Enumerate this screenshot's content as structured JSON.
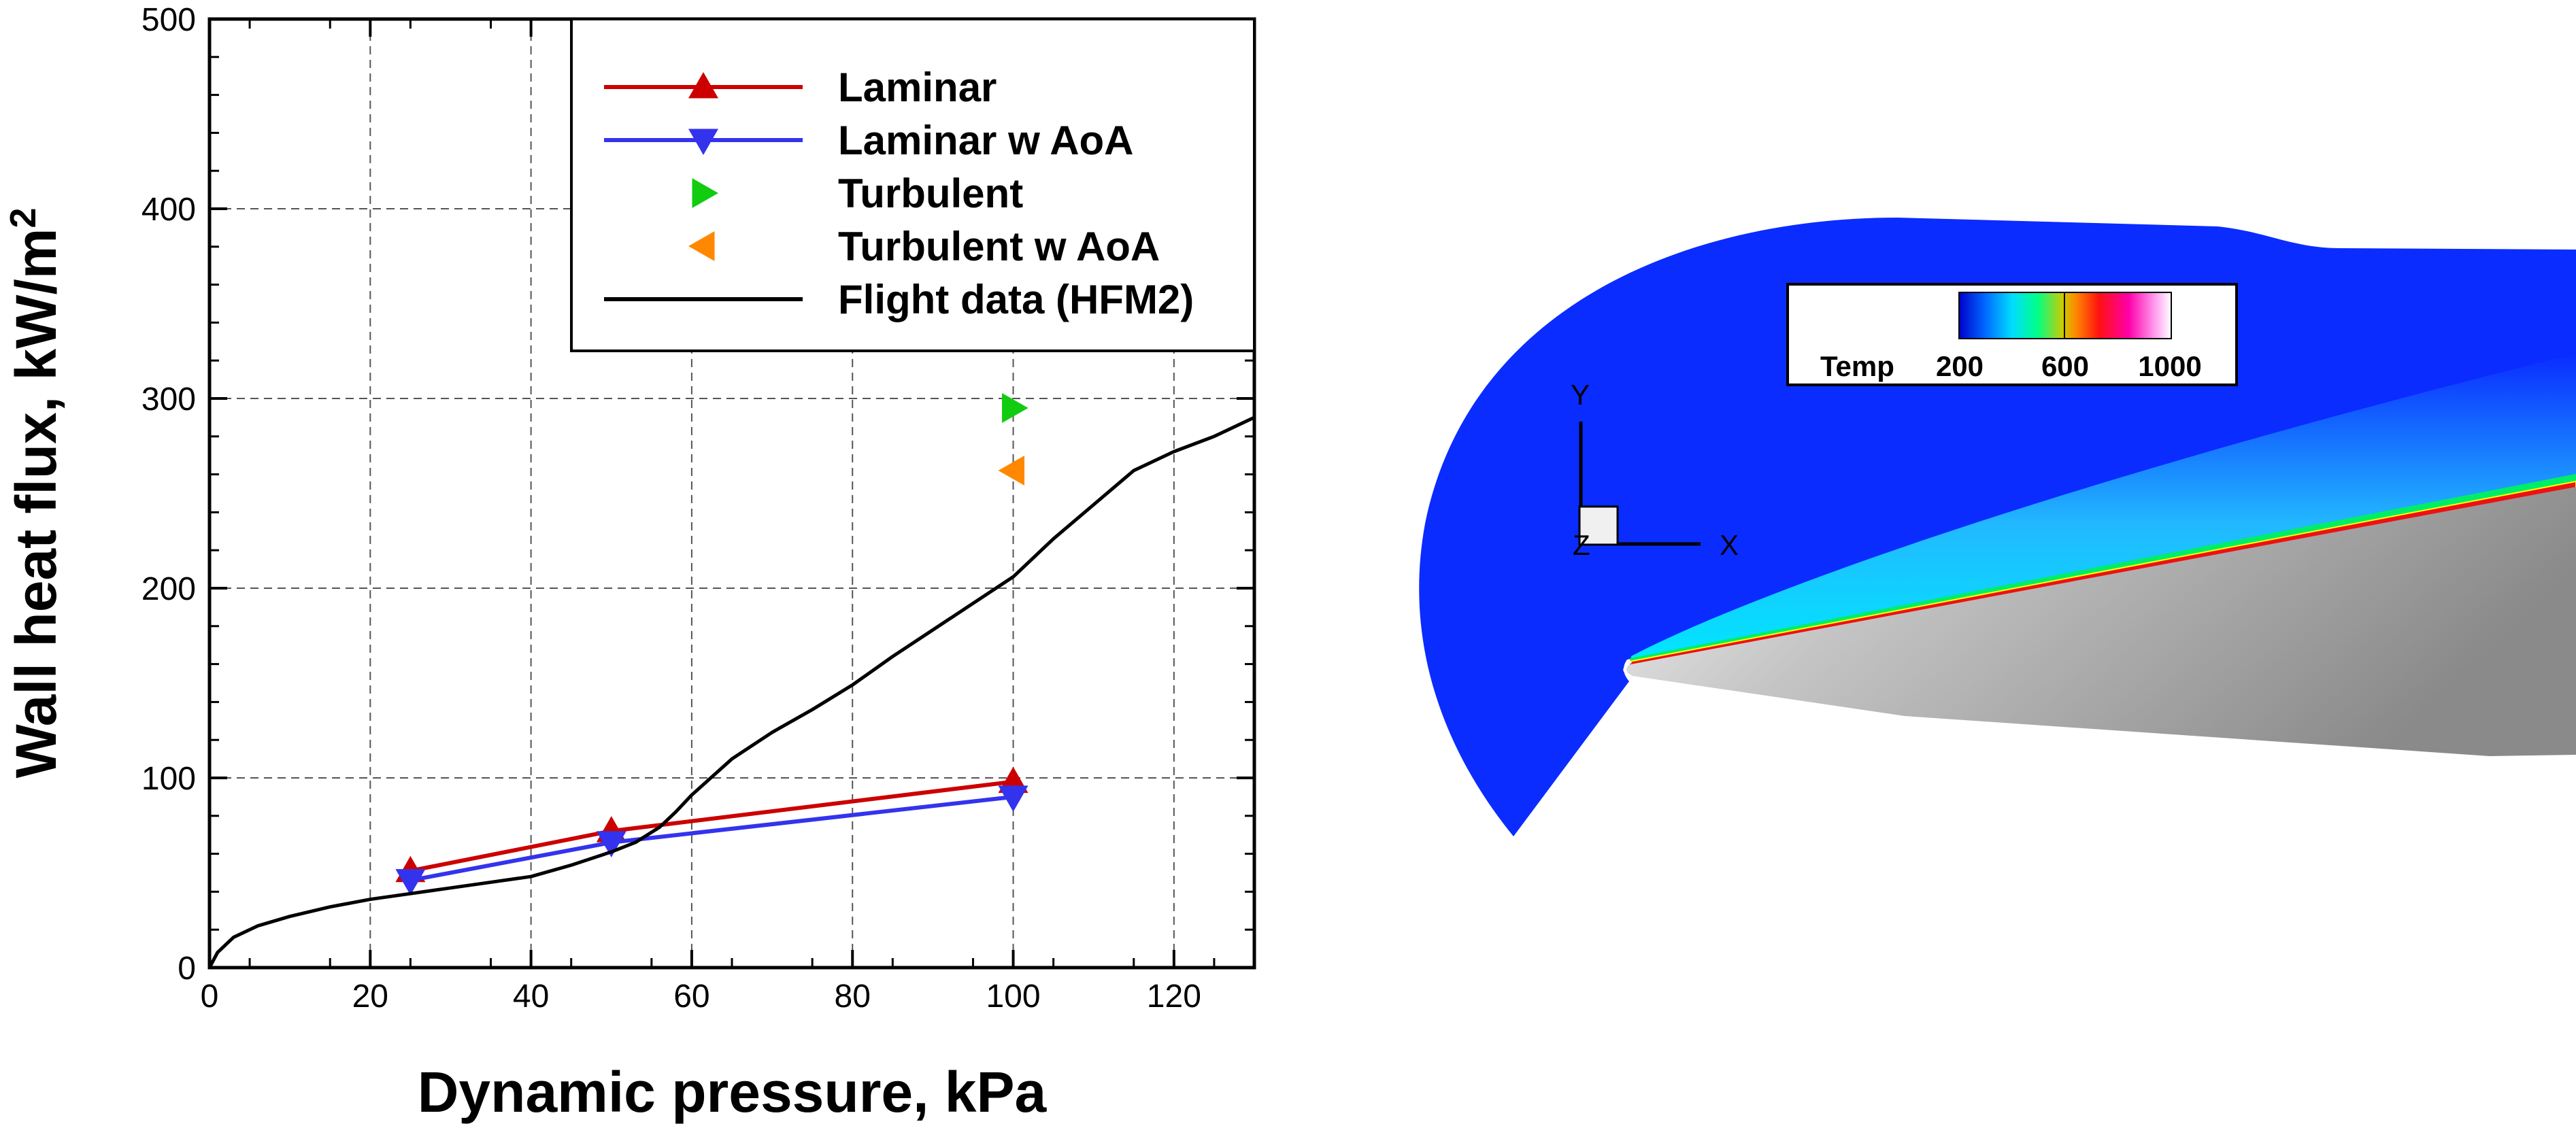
{
  "chart_data": [
    {
      "type": "line",
      "title": "",
      "xlabel": "Dynamic pressure, kPa",
      "ylabel": "Wall heat flux, kW/m",
      "ylabel_superscript": "2",
      "xlim": [
        0,
        130
      ],
      "ylim": [
        0,
        500
      ],
      "xticks": [
        0,
        20,
        40,
        60,
        80,
        100,
        120
      ],
      "yticks": [
        0,
        100,
        200,
        300,
        400,
        500
      ],
      "grid": true,
      "legend_position": "top-right",
      "series": [
        {
          "name": "Laminar",
          "color": "#cc0000",
          "marker": "triangle-up",
          "style": "line-marker",
          "x": [
            25,
            50,
            100
          ],
          "y": [
            51,
            72,
            98
          ]
        },
        {
          "name": "Laminar w AoA",
          "color": "#3333ee",
          "marker": "triangle-down",
          "style": "line-marker",
          "x": [
            25,
            50,
            100
          ],
          "y": [
            46,
            66,
            90
          ]
        },
        {
          "name": "Turbulent",
          "color": "#11cc11",
          "marker": "triangle-right",
          "style": "marker",
          "x": [
            100
          ],
          "y": [
            295
          ]
        },
        {
          "name": "Turbulent w AoA",
          "color": "#ff8800",
          "marker": "triangle-left",
          "style": "marker",
          "x": [
            100
          ],
          "y": [
            262
          ]
        },
        {
          "name": "Flight data (HFM2)",
          "color": "#000000",
          "marker": "none",
          "style": "line",
          "x": [
            0,
            1,
            3,
            6,
            10,
            15,
            20,
            25,
            30,
            35,
            40,
            45,
            50,
            53,
            56,
            58,
            60,
            65,
            70,
            75,
            80,
            85,
            90,
            95,
            100,
            105,
            110,
            115,
            120,
            125,
            130
          ],
          "y": [
            0,
            8,
            16,
            22,
            27,
            32,
            36,
            39,
            42,
            45,
            48,
            54,
            61,
            66,
            74,
            82,
            91,
            110,
            124,
            136,
            149,
            164,
            178,
            192,
            206,
            226,
            244,
            262,
            272,
            280,
            290
          ]
        }
      ]
    },
    {
      "type": "heatmap",
      "title": "",
      "colorbar": {
        "label": "Temp",
        "ticks": [
          200,
          600,
          1000
        ]
      },
      "axes_triad": {
        "x_label": "X",
        "y_label": "Y",
        "z_label": "Z"
      },
      "colors": {
        "freestream": "#0a2cff",
        "body": "#9a9a9a"
      }
    }
  ]
}
